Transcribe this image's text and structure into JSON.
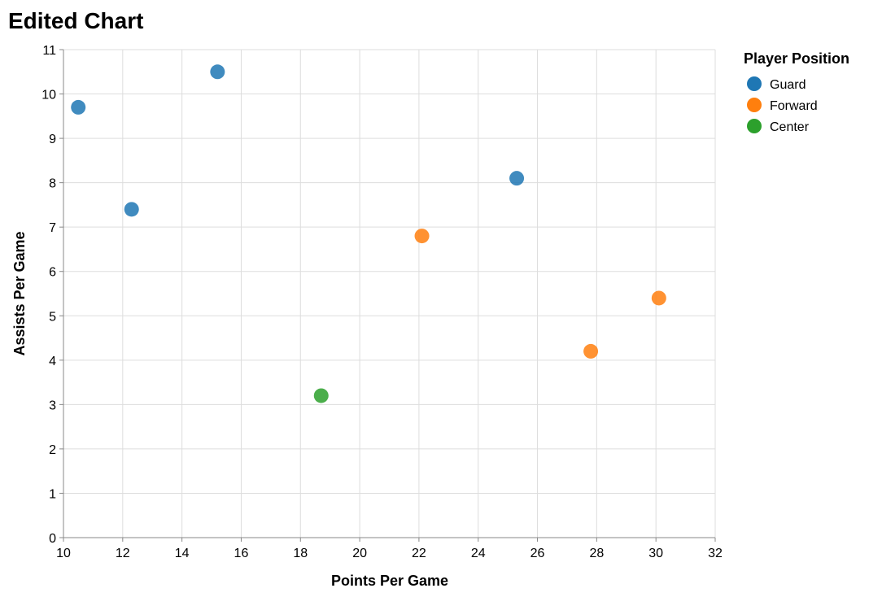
{
  "chart_data": {
    "type": "scatter",
    "title": "Edited Chart",
    "xlabel": "Points Per Game",
    "ylabel": "Assists Per Game",
    "xlim": [
      10,
      32
    ],
    "ylim": [
      0,
      11
    ],
    "x_ticks": [
      "10",
      "12",
      "14",
      "16",
      "18",
      "20",
      "22",
      "24",
      "26",
      "28",
      "30",
      "32"
    ],
    "y_ticks": [
      "0",
      "1",
      "2",
      "3",
      "4",
      "5",
      "6",
      "7",
      "8",
      "9",
      "10",
      "11"
    ],
    "grid": true,
    "legend": {
      "title": "Player Position",
      "placement": "top-right",
      "entries": [
        {
          "label": "Guard",
          "color": "#1f77b4"
        },
        {
          "label": "Forward",
          "color": "#ff7f0e"
        },
        {
          "label": "Center",
          "color": "#2ca02c"
        }
      ]
    },
    "series": [
      {
        "name": "Guard",
        "color": "#1f77b4",
        "points": [
          {
            "x": 10.5,
            "y": 9.7
          },
          {
            "x": 12.3,
            "y": 7.4
          },
          {
            "x": 15.2,
            "y": 10.5
          },
          {
            "x": 25.3,
            "y": 8.1
          }
        ]
      },
      {
        "name": "Forward",
        "color": "#ff7f0e",
        "points": [
          {
            "x": 22.1,
            "y": 6.8
          },
          {
            "x": 27.8,
            "y": 4.2
          },
          {
            "x": 30.1,
            "y": 5.4
          }
        ]
      },
      {
        "name": "Center",
        "color": "#2ca02c",
        "points": [
          {
            "x": 18.7,
            "y": 3.2
          }
        ]
      }
    ]
  }
}
